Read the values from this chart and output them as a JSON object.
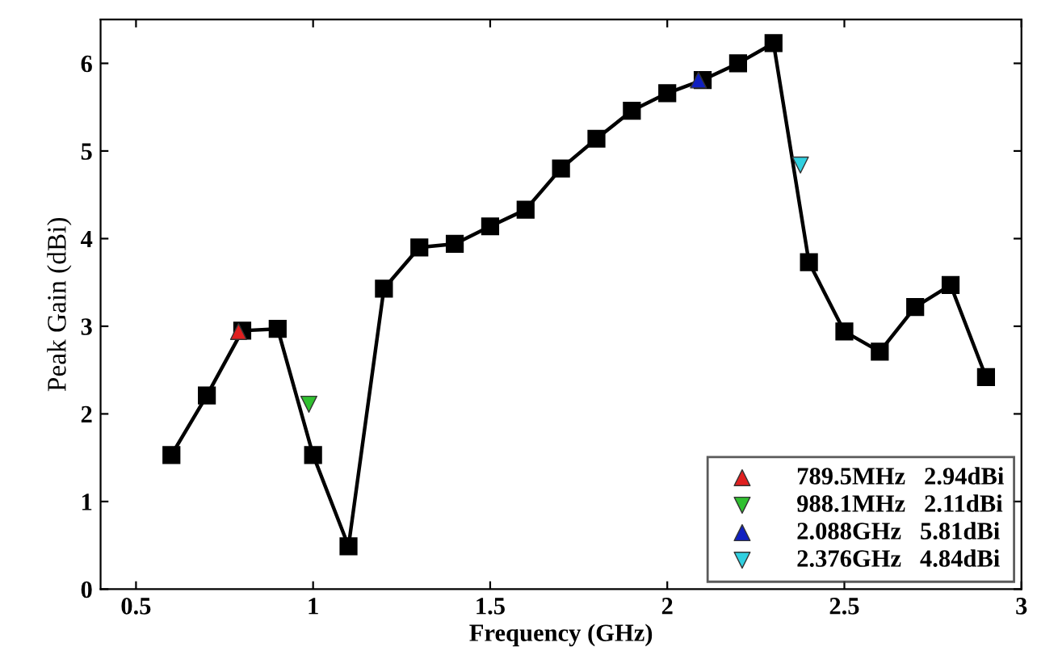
{
  "chart_data": {
    "type": "line",
    "xlabel": "Frequency (GHz)",
    "ylabel": "Peak Gain (dBi)",
    "xlim": [
      0.4,
      3
    ],
    "xticks": [
      0.5,
      1,
      1.5,
      2,
      2.5,
      3
    ],
    "ylim": [
      0,
      6.5
    ],
    "yticks": [
      0,
      1,
      2,
      3,
      4,
      5,
      6
    ],
    "grid": false,
    "legend": "bottom right",
    "series": [
      {
        "color": "#000000",
        "marker": "square",
        "x": [
          0.6,
          0.7,
          0.8,
          0.9,
          1.0,
          1.1,
          1.2,
          1.3,
          1.4,
          1.5,
          1.6,
          1.7,
          1.8,
          1.9,
          2.0,
          2.1,
          2.2,
          2.3,
          2.4,
          2.5,
          2.6,
          2.7,
          2.8,
          2.9
        ],
        "values": [
          1.53,
          2.21,
          2.95,
          2.97,
          1.53,
          0.49,
          3.43,
          3.9,
          3.94,
          4.14,
          4.33,
          4.8,
          5.14,
          5.46,
          5.66,
          5.81,
          6.0,
          6.23,
          3.73,
          2.94,
          2.71,
          3.22,
          3.47,
          2.42
        ]
      },
      {
        "type": "scatter",
        "name": "789.5MHz   2.94dBi",
        "color": "#e02020",
        "marker": "triangle",
        "x": [
          0.7895
        ],
        "values": [
          2.94
        ]
      },
      {
        "type": "scatter",
        "name": "988.1MHz   2.11dBi",
        "color": "#30c030",
        "marker": "triangle_down",
        "x": [
          0.9881
        ],
        "values": [
          2.11
        ]
      },
      {
        "type": "scatter",
        "name": "2.088GHz   5.81dBi",
        "color": "#1020c0",
        "marker": "triangle",
        "x": [
          2.088
        ],
        "values": [
          5.81
        ]
      },
      {
        "type": "scatter",
        "name": "2.376GHz   4.84dBi",
        "color": "#30d0e0",
        "marker": "triangle_down",
        "x": [
          2.376
        ],
        "values": [
          4.84
        ]
      }
    ]
  }
}
